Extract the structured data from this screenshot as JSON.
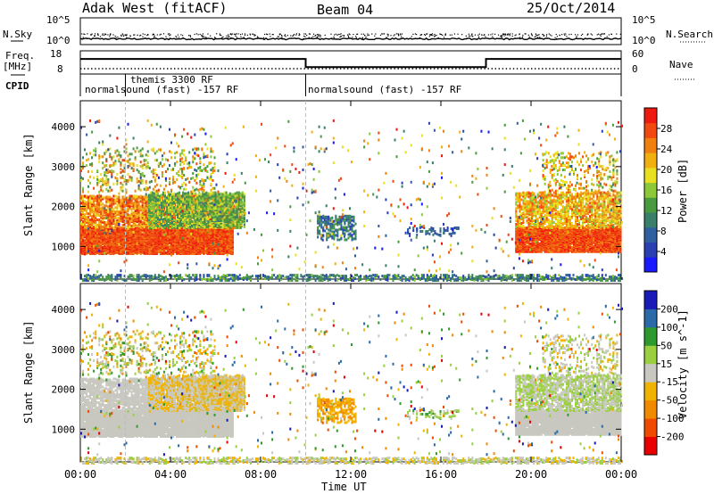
{
  "header": {
    "station": "Adak West (fitACF)",
    "beam": "Beam 04",
    "date": "25/Oct/2014"
  },
  "left_labels": {
    "nsky": "N.Sky",
    "freq": "Freq.",
    "freq_unit": "[MHz]",
    "cpid": "CPID"
  },
  "right_labels": {
    "nsearch": "N.Search",
    "nave": "Nave"
  },
  "noise_axis": {
    "left_top": "10^5",
    "left_bottom": "10^0",
    "right_top": "10^5",
    "right_bottom": "10^0"
  },
  "freq_axis": {
    "left_top": "18",
    "left_bottom": "8",
    "right_top": "60",
    "right_bottom": "0"
  },
  "cpid_segments": [
    {
      "label": "normalsound (fast) -157 RF",
      "start_h": 0
    },
    {
      "label": "themis 3300 RF",
      "start_h": 2
    },
    {
      "label": "normalsound (fast) -157 RF",
      "start_h": 10
    }
  ],
  "colors": {
    "power": [
      "#1a1aff",
      "#2a3fb0",
      "#2f5fa0",
      "#3a7f6a",
      "#4a9a40",
      "#8cc83a",
      "#e8e020",
      "#f0b010",
      "#f08010",
      "#f04a10",
      "#ee1a10"
    ],
    "velocity": [
      "#e80000",
      "#f04a00",
      "#f08a00",
      "#f0b400",
      "#c8c8c0",
      "#9ad040",
      "#2e9a2e",
      "#2a6aa8",
      "#1a1ab8"
    ]
  },
  "chart_data": [
    {
      "type": "line",
      "name": "noise-panel",
      "ylabel_left": "N.Sky",
      "ylabel_right": "N.Search",
      "scale": "log",
      "ylim": [
        1,
        100000
      ]
    },
    {
      "type": "line",
      "name": "frequency-panel",
      "ylabel_left": "Freq. [MHz]",
      "ylabel_right": "Nave",
      "ylim": [
        8,
        18
      ],
      "x": [
        0,
        10,
        10,
        18,
        18,
        24
      ],
      "freq_mhz": [
        14.5,
        14.5,
        11.0,
        11.0,
        14.5,
        14.5
      ]
    },
    {
      "type": "heatmap",
      "name": "power",
      "ylabel": "Slant Range [km]",
      "colorbar_label": "Power [dB]",
      "colorbar_ticks": [
        "4",
        "8",
        "12",
        "16",
        "20",
        "24",
        "28"
      ],
      "x_hours": [
        0,
        24
      ],
      "ylim": [
        180,
        4650
      ],
      "yticks": [
        "1000",
        "2000",
        "3000",
        "4000"
      ]
    },
    {
      "type": "heatmap",
      "name": "velocity",
      "ylabel": "Slant Range [km]",
      "colorbar_label": "Velocity [m s^-1]",
      "colorbar_ticks": [
        "-200",
        "-100",
        "-50",
        "-15",
        "15",
        "50",
        "100",
        "200"
      ],
      "x_hours": [
        0,
        24
      ],
      "ylim": [
        180,
        4650
      ],
      "yticks": [
        "1000",
        "2000",
        "3000",
        "4000"
      ]
    }
  ],
  "xaxis": {
    "ticks": [
      "00:00",
      "04:00",
      "08:00",
      "12:00",
      "16:00",
      "20:00",
      "00:00"
    ],
    "label": "Time UT"
  }
}
